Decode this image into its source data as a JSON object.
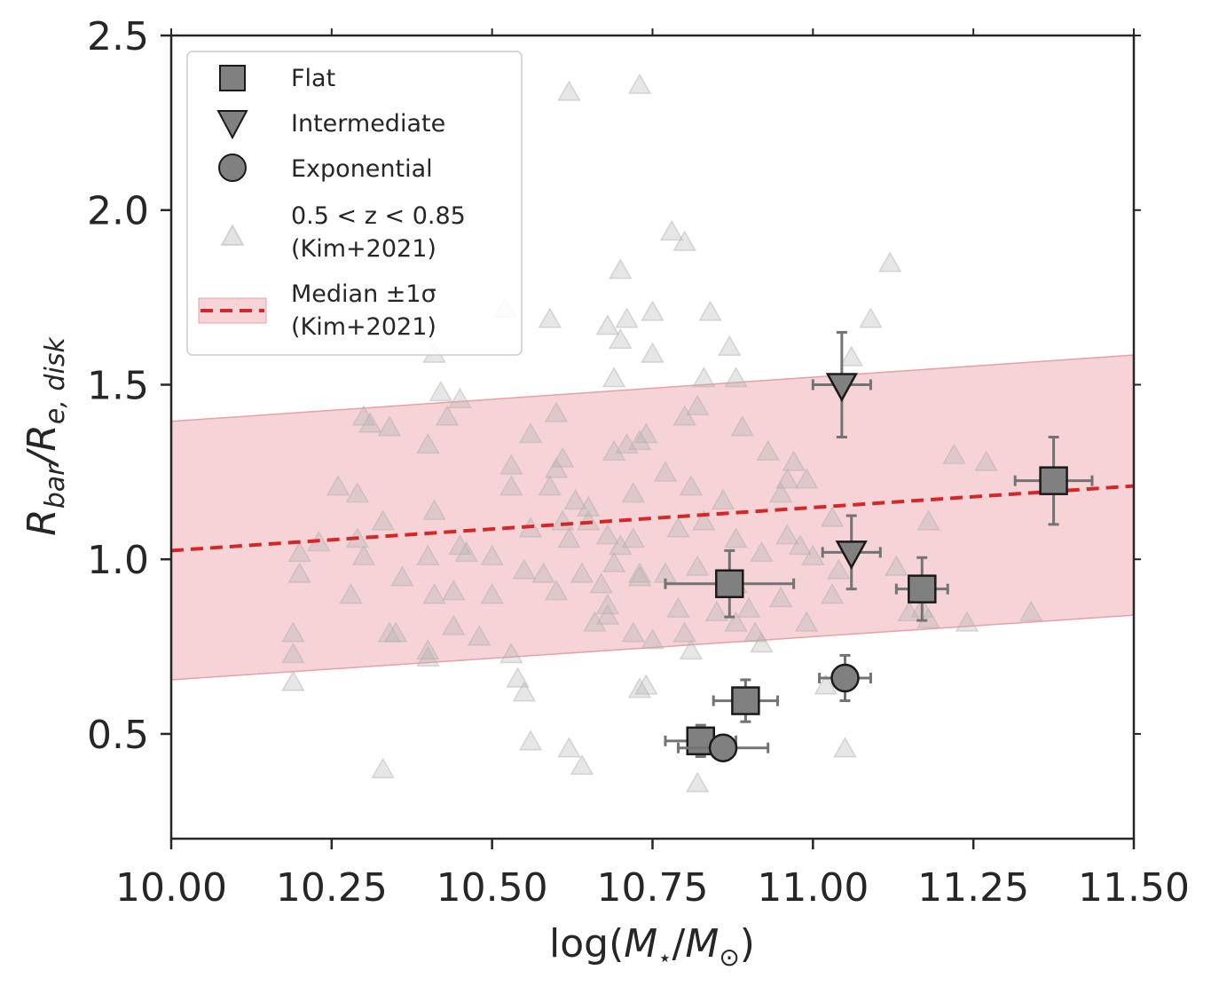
{
  "chart_data": {
    "type": "scatter",
    "xlabel": {
      "prefix": "log(",
      "num": "M",
      "num_sub": "⋆",
      "slash": "/",
      "den": "M",
      "den_sub": "⊙",
      "suffix": ")"
    },
    "ylabel": {
      "base1": "R",
      "sub1": "bar",
      "slash": "/",
      "base2": "R",
      "sub2": "e, disk"
    },
    "xlim": [
      10.0,
      11.5
    ],
    "ylim": [
      0.2,
      2.5
    ],
    "xticks": [
      "10.00",
      "10.25",
      "10.50",
      "10.75",
      "11.00",
      "11.25",
      "11.50"
    ],
    "yticks": [
      "0.5",
      "1.0",
      "1.5",
      "2.0",
      "2.5"
    ],
    "colors": {
      "marker": "#808080",
      "marker_edge": "#1a1a1a",
      "errorbar": "#737373",
      "median_line": "#d62728",
      "band_fill": "#f5d3d6",
      "band_edge": "#e8a0a6",
      "background_points": "#b0b0b0",
      "axes": "#262626"
    },
    "legend": {
      "position": "upper-left",
      "entries": [
        {
          "marker": "square",
          "label": "Flat"
        },
        {
          "marker": "triangle-down",
          "label": "Intermediate"
        },
        {
          "marker": "circle",
          "label": "Exponential"
        },
        {
          "marker": "triangle-up-light",
          "label": "0.5 < z < 0.85",
          "label2": "(Kim+2021)"
        },
        {
          "marker": "dashed-band",
          "label": "Median ±1σ",
          "label2": "(Kim+2021)"
        }
      ]
    },
    "median_line": {
      "x": [
        10.0,
        11.5
      ],
      "y": [
        1.025,
        1.21
      ]
    },
    "sigma_band": {
      "x": [
        10.0,
        11.5
      ],
      "upper": [
        1.395,
        1.585
      ],
      "lower": [
        0.655,
        0.84
      ]
    },
    "series": [
      {
        "name": "Flat",
        "marker": "square",
        "points": [
          {
            "x": 10.87,
            "y": 0.93,
            "xerr": 0.1,
            "yerr": 0.095
          },
          {
            "x": 11.17,
            "y": 0.915,
            "xerr": 0.04,
            "yerr": 0.09
          },
          {
            "x": 11.375,
            "y": 1.225,
            "xerr": 0.06,
            "yerr": 0.125
          },
          {
            "x": 10.895,
            "y": 0.595,
            "xerr": 0.05,
            "yerr": 0.06
          },
          {
            "x": 10.825,
            "y": 0.48,
            "xerr": 0.055,
            "yerr": 0.045
          }
        ]
      },
      {
        "name": "Intermediate",
        "marker": "triangle-down",
        "points": [
          {
            "x": 11.045,
            "y": 1.5,
            "xerr": 0.045,
            "yerr": 0.15
          },
          {
            "x": 11.06,
            "y": 1.02,
            "xerr": 0.045,
            "yerr": 0.105
          }
        ]
      },
      {
        "name": "Exponential",
        "marker": "circle",
        "points": [
          {
            "x": 11.05,
            "y": 0.66,
            "xerr": 0.04,
            "yerr": 0.065
          },
          {
            "x": 10.86,
            "y": 0.46,
            "xerr": 0.07,
            "yerr": 0.035
          }
        ]
      },
      {
        "name": "0.5 < z < 0.85 (Kim+2021)",
        "marker": "triangle-up",
        "points": [
          [
            10.62,
            2.34
          ],
          [
            10.73,
            2.36
          ],
          [
            10.78,
            1.94
          ],
          [
            10.8,
            1.91
          ],
          [
            10.7,
            1.83
          ],
          [
            11.12,
            1.85
          ],
          [
            10.52,
            1.72
          ],
          [
            10.59,
            1.69
          ],
          [
            10.68,
            1.67
          ],
          [
            10.71,
            1.69
          ],
          [
            10.7,
            1.63
          ],
          [
            10.75,
            1.71
          ],
          [
            10.84,
            1.71
          ],
          [
            11.09,
            1.69
          ],
          [
            10.41,
            1.59
          ],
          [
            10.75,
            1.59
          ],
          [
            10.87,
            1.61
          ],
          [
            11.06,
            1.58
          ],
          [
            10.69,
            1.52
          ],
          [
            10.83,
            1.52
          ],
          [
            10.88,
            1.52
          ],
          [
            10.42,
            1.48
          ],
          [
            10.45,
            1.46
          ],
          [
            10.82,
            1.44
          ],
          [
            10.3,
            1.41
          ],
          [
            10.31,
            1.39
          ],
          [
            10.34,
            1.38
          ],
          [
            10.43,
            1.41
          ],
          [
            10.6,
            1.42
          ],
          [
            10.56,
            1.36
          ],
          [
            10.74,
            1.36
          ],
          [
            10.8,
            1.41
          ],
          [
            10.89,
            1.38
          ],
          [
            10.4,
            1.33
          ],
          [
            10.69,
            1.31
          ],
          [
            10.71,
            1.33
          ],
          [
            10.73,
            1.34
          ],
          [
            10.93,
            1.31
          ],
          [
            10.97,
            1.28
          ],
          [
            11.22,
            1.3
          ],
          [
            11.27,
            1.28
          ],
          [
            10.53,
            1.27
          ],
          [
            10.61,
            1.29
          ],
          [
            10.6,
            1.26
          ],
          [
            10.77,
            1.25
          ],
          [
            10.96,
            1.23
          ],
          [
            10.26,
            1.21
          ],
          [
            10.29,
            1.19
          ],
          [
            10.53,
            1.21
          ],
          [
            10.59,
            1.21
          ],
          [
            10.63,
            1.17
          ],
          [
            10.65,
            1.15
          ],
          [
            10.72,
            1.19
          ],
          [
            10.81,
            1.21
          ],
          [
            10.86,
            1.17
          ],
          [
            10.95,
            1.19
          ],
          [
            10.99,
            1.23
          ],
          [
            10.23,
            1.05
          ],
          [
            10.29,
            1.06
          ],
          [
            10.33,
            1.11
          ],
          [
            10.41,
            1.14
          ],
          [
            10.45,
            1.04
          ],
          [
            10.56,
            1.09
          ],
          [
            10.61,
            1.11
          ],
          [
            10.62,
            1.06
          ],
          [
            10.65,
            1.11
          ],
          [
            10.68,
            1.07
          ],
          [
            10.7,
            1.04
          ],
          [
            10.72,
            1.06
          ],
          [
            10.79,
            1.09
          ],
          [
            10.83,
            1.11
          ],
          [
            10.88,
            1.06
          ],
          [
            10.96,
            1.07
          ],
          [
            11.0,
            1.01
          ],
          [
            11.03,
            1.12
          ],
          [
            11.18,
            1.11
          ],
          [
            10.2,
            1.02
          ],
          [
            10.3,
            1.01
          ],
          [
            10.4,
            1.01
          ],
          [
            10.46,
            1.02
          ],
          [
            10.5,
            1.01
          ],
          [
            10.55,
            0.97
          ],
          [
            10.58,
            0.96
          ],
          [
            10.64,
            0.96
          ],
          [
            10.67,
            0.93
          ],
          [
            10.69,
            0.99
          ],
          [
            10.73,
            0.95
          ],
          [
            10.77,
            0.96
          ],
          [
            10.82,
            0.98
          ],
          [
            10.88,
            0.93
          ],
          [
            10.92,
            1.02
          ],
          [
            10.98,
            1.04
          ],
          [
            11.04,
            0.97
          ],
          [
            11.13,
            0.98
          ],
          [
            10.2,
            0.96
          ],
          [
            10.28,
            0.9
          ],
          [
            10.36,
            0.95
          ],
          [
            10.41,
            0.9
          ],
          [
            10.44,
            0.91
          ],
          [
            10.5,
            0.9
          ],
          [
            10.6,
            0.91
          ],
          [
            10.68,
            0.87
          ],
          [
            10.73,
            0.96
          ],
          [
            10.79,
            0.86
          ],
          [
            10.85,
            0.85
          ],
          [
            10.9,
            0.86
          ],
          [
            10.95,
            0.89
          ],
          [
            11.03,
            0.9
          ],
          [
            11.15,
            0.85
          ],
          [
            11.17,
            0.86
          ],
          [
            11.18,
            0.83
          ],
          [
            10.19,
            0.79
          ],
          [
            10.34,
            0.79
          ],
          [
            10.35,
            0.79
          ],
          [
            10.44,
            0.81
          ],
          [
            10.48,
            0.78
          ],
          [
            10.66,
            0.82
          ],
          [
            10.68,
            0.84
          ],
          [
            10.72,
            0.79
          ],
          [
            10.8,
            0.79
          ],
          [
            10.88,
            0.82
          ],
          [
            10.91,
            0.79
          ],
          [
            10.92,
            0.76
          ],
          [
            10.99,
            0.82
          ],
          [
            11.24,
            0.82
          ],
          [
            11.34,
            0.85
          ],
          [
            10.19,
            0.73
          ],
          [
            10.4,
            0.74
          ],
          [
            10.4,
            0.72
          ],
          [
            10.53,
            0.73
          ],
          [
            10.54,
            0.66
          ],
          [
            10.75,
            0.77
          ],
          [
            10.81,
            0.74
          ],
          [
            10.19,
            0.65
          ],
          [
            10.73,
            0.63
          ],
          [
            10.74,
            0.64
          ],
          [
            11.02,
            0.64
          ],
          [
            10.55,
            0.62
          ],
          [
            10.56,
            0.48
          ],
          [
            10.62,
            0.46
          ],
          [
            10.64,
            0.41
          ],
          [
            11.05,
            0.46
          ],
          [
            10.33,
            0.4
          ],
          [
            10.82,
            0.36
          ]
        ]
      }
    ]
  }
}
